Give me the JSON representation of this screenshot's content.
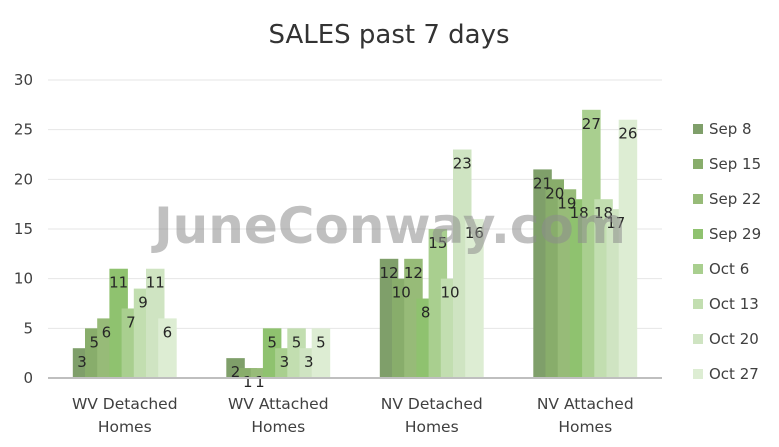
{
  "chart_data": {
    "type": "bar",
    "title": "SALES past 7 days",
    "watermark": "JuneConway.com",
    "categories": [
      "WV Detached Homes",
      "WV Attached Homes",
      "NV Detached Homes",
      "NV Attached Homes"
    ],
    "category_lines": [
      [
        "WV Detached",
        "Homes"
      ],
      [
        "WV Attached",
        "Homes"
      ],
      [
        "NV Detached",
        "Homes"
      ],
      [
        "NV Attached",
        "Homes"
      ]
    ],
    "ylim": [
      0,
      30
    ],
    "yticks": [
      0,
      5,
      10,
      15,
      20,
      25,
      30
    ],
    "grid": true,
    "legend_position": "right",
    "colors": [
      "#7f9f6a",
      "#88ad6b",
      "#97bb78",
      "#8fc26f",
      "#a9cf8f",
      "#c2deb0",
      "#cfe4c2",
      "#ddedd3"
    ],
    "series": [
      {
        "name": "Sep 8",
        "values": [
          3,
          2,
          12,
          21
        ]
      },
      {
        "name": "Sep 15",
        "values": [
          5,
          1,
          10,
          20
        ]
      },
      {
        "name": "Sep 22",
        "values": [
          6,
          1,
          12,
          19
        ]
      },
      {
        "name": "Sep 29",
        "values": [
          11,
          5,
          8,
          18
        ]
      },
      {
        "name": "Oct 6",
        "values": [
          7,
          3,
          15,
          27
        ]
      },
      {
        "name": "Oct 13",
        "values": [
          9,
          5,
          10,
          18
        ]
      },
      {
        "name": "Oct 20",
        "values": [
          11,
          3,
          23,
          17
        ]
      },
      {
        "name": "Oct 27",
        "values": [
          6,
          5,
          16,
          26
        ]
      }
    ]
  }
}
